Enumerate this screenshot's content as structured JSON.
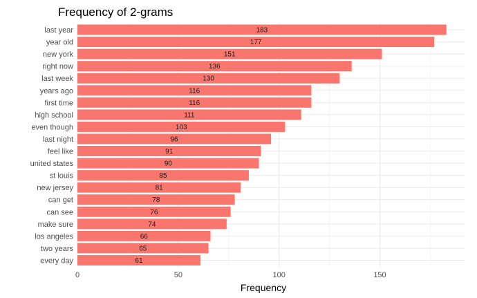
{
  "chart_data": {
    "type": "bar",
    "orientation": "horizontal",
    "title": "Frequency of 2-grams",
    "xlabel": "Frequency",
    "ylabel": "",
    "categories": [
      "last year",
      "year old",
      "new york",
      "right now",
      "last week",
      "years ago",
      "first time",
      "high school",
      "even though",
      "last night",
      "feel like",
      "united states",
      "st louis",
      "new jersey",
      "can get",
      "can see",
      "make sure",
      "los angeles",
      "two years",
      "every day"
    ],
    "values": [
      183,
      177,
      151,
      136,
      130,
      116,
      116,
      111,
      103,
      96,
      91,
      90,
      85,
      81,
      78,
      76,
      74,
      66,
      65,
      61
    ],
    "xlim": [
      0,
      192
    ],
    "xticks": [
      0,
      50,
      100,
      150
    ],
    "bar_color": "#F8766D",
    "grid": true,
    "legend": "none"
  }
}
